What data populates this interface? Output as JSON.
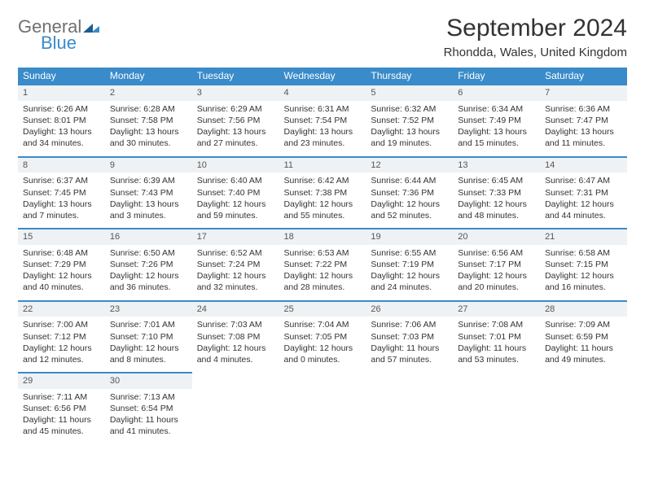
{
  "brand": {
    "word1": "General",
    "word2": "Blue"
  },
  "title": "September 2024",
  "location": "Rhondda, Wales, United Kingdom",
  "colors": {
    "header_bg": "#3a8bc9",
    "header_text": "#ffffff",
    "daynum_bg": "#eef2f5",
    "daynum_border": "#3a8bc9",
    "body_bg": "#ffffff",
    "text": "#333333",
    "logo_grey": "#707070",
    "logo_blue": "#3a8bc9"
  },
  "weekdays": [
    "Sunday",
    "Monday",
    "Tuesday",
    "Wednesday",
    "Thursday",
    "Friday",
    "Saturday"
  ],
  "weeks": [
    [
      {
        "n": "1",
        "sr": "Sunrise: 6:26 AM",
        "ss": "Sunset: 8:01 PM",
        "dl": "Daylight: 13 hours and 34 minutes."
      },
      {
        "n": "2",
        "sr": "Sunrise: 6:28 AM",
        "ss": "Sunset: 7:58 PM",
        "dl": "Daylight: 13 hours and 30 minutes."
      },
      {
        "n": "3",
        "sr": "Sunrise: 6:29 AM",
        "ss": "Sunset: 7:56 PM",
        "dl": "Daylight: 13 hours and 27 minutes."
      },
      {
        "n": "4",
        "sr": "Sunrise: 6:31 AM",
        "ss": "Sunset: 7:54 PM",
        "dl": "Daylight: 13 hours and 23 minutes."
      },
      {
        "n": "5",
        "sr": "Sunrise: 6:32 AM",
        "ss": "Sunset: 7:52 PM",
        "dl": "Daylight: 13 hours and 19 minutes."
      },
      {
        "n": "6",
        "sr": "Sunrise: 6:34 AM",
        "ss": "Sunset: 7:49 PM",
        "dl": "Daylight: 13 hours and 15 minutes."
      },
      {
        "n": "7",
        "sr": "Sunrise: 6:36 AM",
        "ss": "Sunset: 7:47 PM",
        "dl": "Daylight: 13 hours and 11 minutes."
      }
    ],
    [
      {
        "n": "8",
        "sr": "Sunrise: 6:37 AM",
        "ss": "Sunset: 7:45 PM",
        "dl": "Daylight: 13 hours and 7 minutes."
      },
      {
        "n": "9",
        "sr": "Sunrise: 6:39 AM",
        "ss": "Sunset: 7:43 PM",
        "dl": "Daylight: 13 hours and 3 minutes."
      },
      {
        "n": "10",
        "sr": "Sunrise: 6:40 AM",
        "ss": "Sunset: 7:40 PM",
        "dl": "Daylight: 12 hours and 59 minutes."
      },
      {
        "n": "11",
        "sr": "Sunrise: 6:42 AM",
        "ss": "Sunset: 7:38 PM",
        "dl": "Daylight: 12 hours and 55 minutes."
      },
      {
        "n": "12",
        "sr": "Sunrise: 6:44 AM",
        "ss": "Sunset: 7:36 PM",
        "dl": "Daylight: 12 hours and 52 minutes."
      },
      {
        "n": "13",
        "sr": "Sunrise: 6:45 AM",
        "ss": "Sunset: 7:33 PM",
        "dl": "Daylight: 12 hours and 48 minutes."
      },
      {
        "n": "14",
        "sr": "Sunrise: 6:47 AM",
        "ss": "Sunset: 7:31 PM",
        "dl": "Daylight: 12 hours and 44 minutes."
      }
    ],
    [
      {
        "n": "15",
        "sr": "Sunrise: 6:48 AM",
        "ss": "Sunset: 7:29 PM",
        "dl": "Daylight: 12 hours and 40 minutes."
      },
      {
        "n": "16",
        "sr": "Sunrise: 6:50 AM",
        "ss": "Sunset: 7:26 PM",
        "dl": "Daylight: 12 hours and 36 minutes."
      },
      {
        "n": "17",
        "sr": "Sunrise: 6:52 AM",
        "ss": "Sunset: 7:24 PM",
        "dl": "Daylight: 12 hours and 32 minutes."
      },
      {
        "n": "18",
        "sr": "Sunrise: 6:53 AM",
        "ss": "Sunset: 7:22 PM",
        "dl": "Daylight: 12 hours and 28 minutes."
      },
      {
        "n": "19",
        "sr": "Sunrise: 6:55 AM",
        "ss": "Sunset: 7:19 PM",
        "dl": "Daylight: 12 hours and 24 minutes."
      },
      {
        "n": "20",
        "sr": "Sunrise: 6:56 AM",
        "ss": "Sunset: 7:17 PM",
        "dl": "Daylight: 12 hours and 20 minutes."
      },
      {
        "n": "21",
        "sr": "Sunrise: 6:58 AM",
        "ss": "Sunset: 7:15 PM",
        "dl": "Daylight: 12 hours and 16 minutes."
      }
    ],
    [
      {
        "n": "22",
        "sr": "Sunrise: 7:00 AM",
        "ss": "Sunset: 7:12 PM",
        "dl": "Daylight: 12 hours and 12 minutes."
      },
      {
        "n": "23",
        "sr": "Sunrise: 7:01 AM",
        "ss": "Sunset: 7:10 PM",
        "dl": "Daylight: 12 hours and 8 minutes."
      },
      {
        "n": "24",
        "sr": "Sunrise: 7:03 AM",
        "ss": "Sunset: 7:08 PM",
        "dl": "Daylight: 12 hours and 4 minutes."
      },
      {
        "n": "25",
        "sr": "Sunrise: 7:04 AM",
        "ss": "Sunset: 7:05 PM",
        "dl": "Daylight: 12 hours and 0 minutes."
      },
      {
        "n": "26",
        "sr": "Sunrise: 7:06 AM",
        "ss": "Sunset: 7:03 PM",
        "dl": "Daylight: 11 hours and 57 minutes."
      },
      {
        "n": "27",
        "sr": "Sunrise: 7:08 AM",
        "ss": "Sunset: 7:01 PM",
        "dl": "Daylight: 11 hours and 53 minutes."
      },
      {
        "n": "28",
        "sr": "Sunrise: 7:09 AM",
        "ss": "Sunset: 6:59 PM",
        "dl": "Daylight: 11 hours and 49 minutes."
      }
    ],
    [
      {
        "n": "29",
        "sr": "Sunrise: 7:11 AM",
        "ss": "Sunset: 6:56 PM",
        "dl": "Daylight: 11 hours and 45 minutes."
      },
      {
        "n": "30",
        "sr": "Sunrise: 7:13 AM",
        "ss": "Sunset: 6:54 PM",
        "dl": "Daylight: 11 hours and 41 minutes."
      },
      null,
      null,
      null,
      null,
      null
    ]
  ]
}
